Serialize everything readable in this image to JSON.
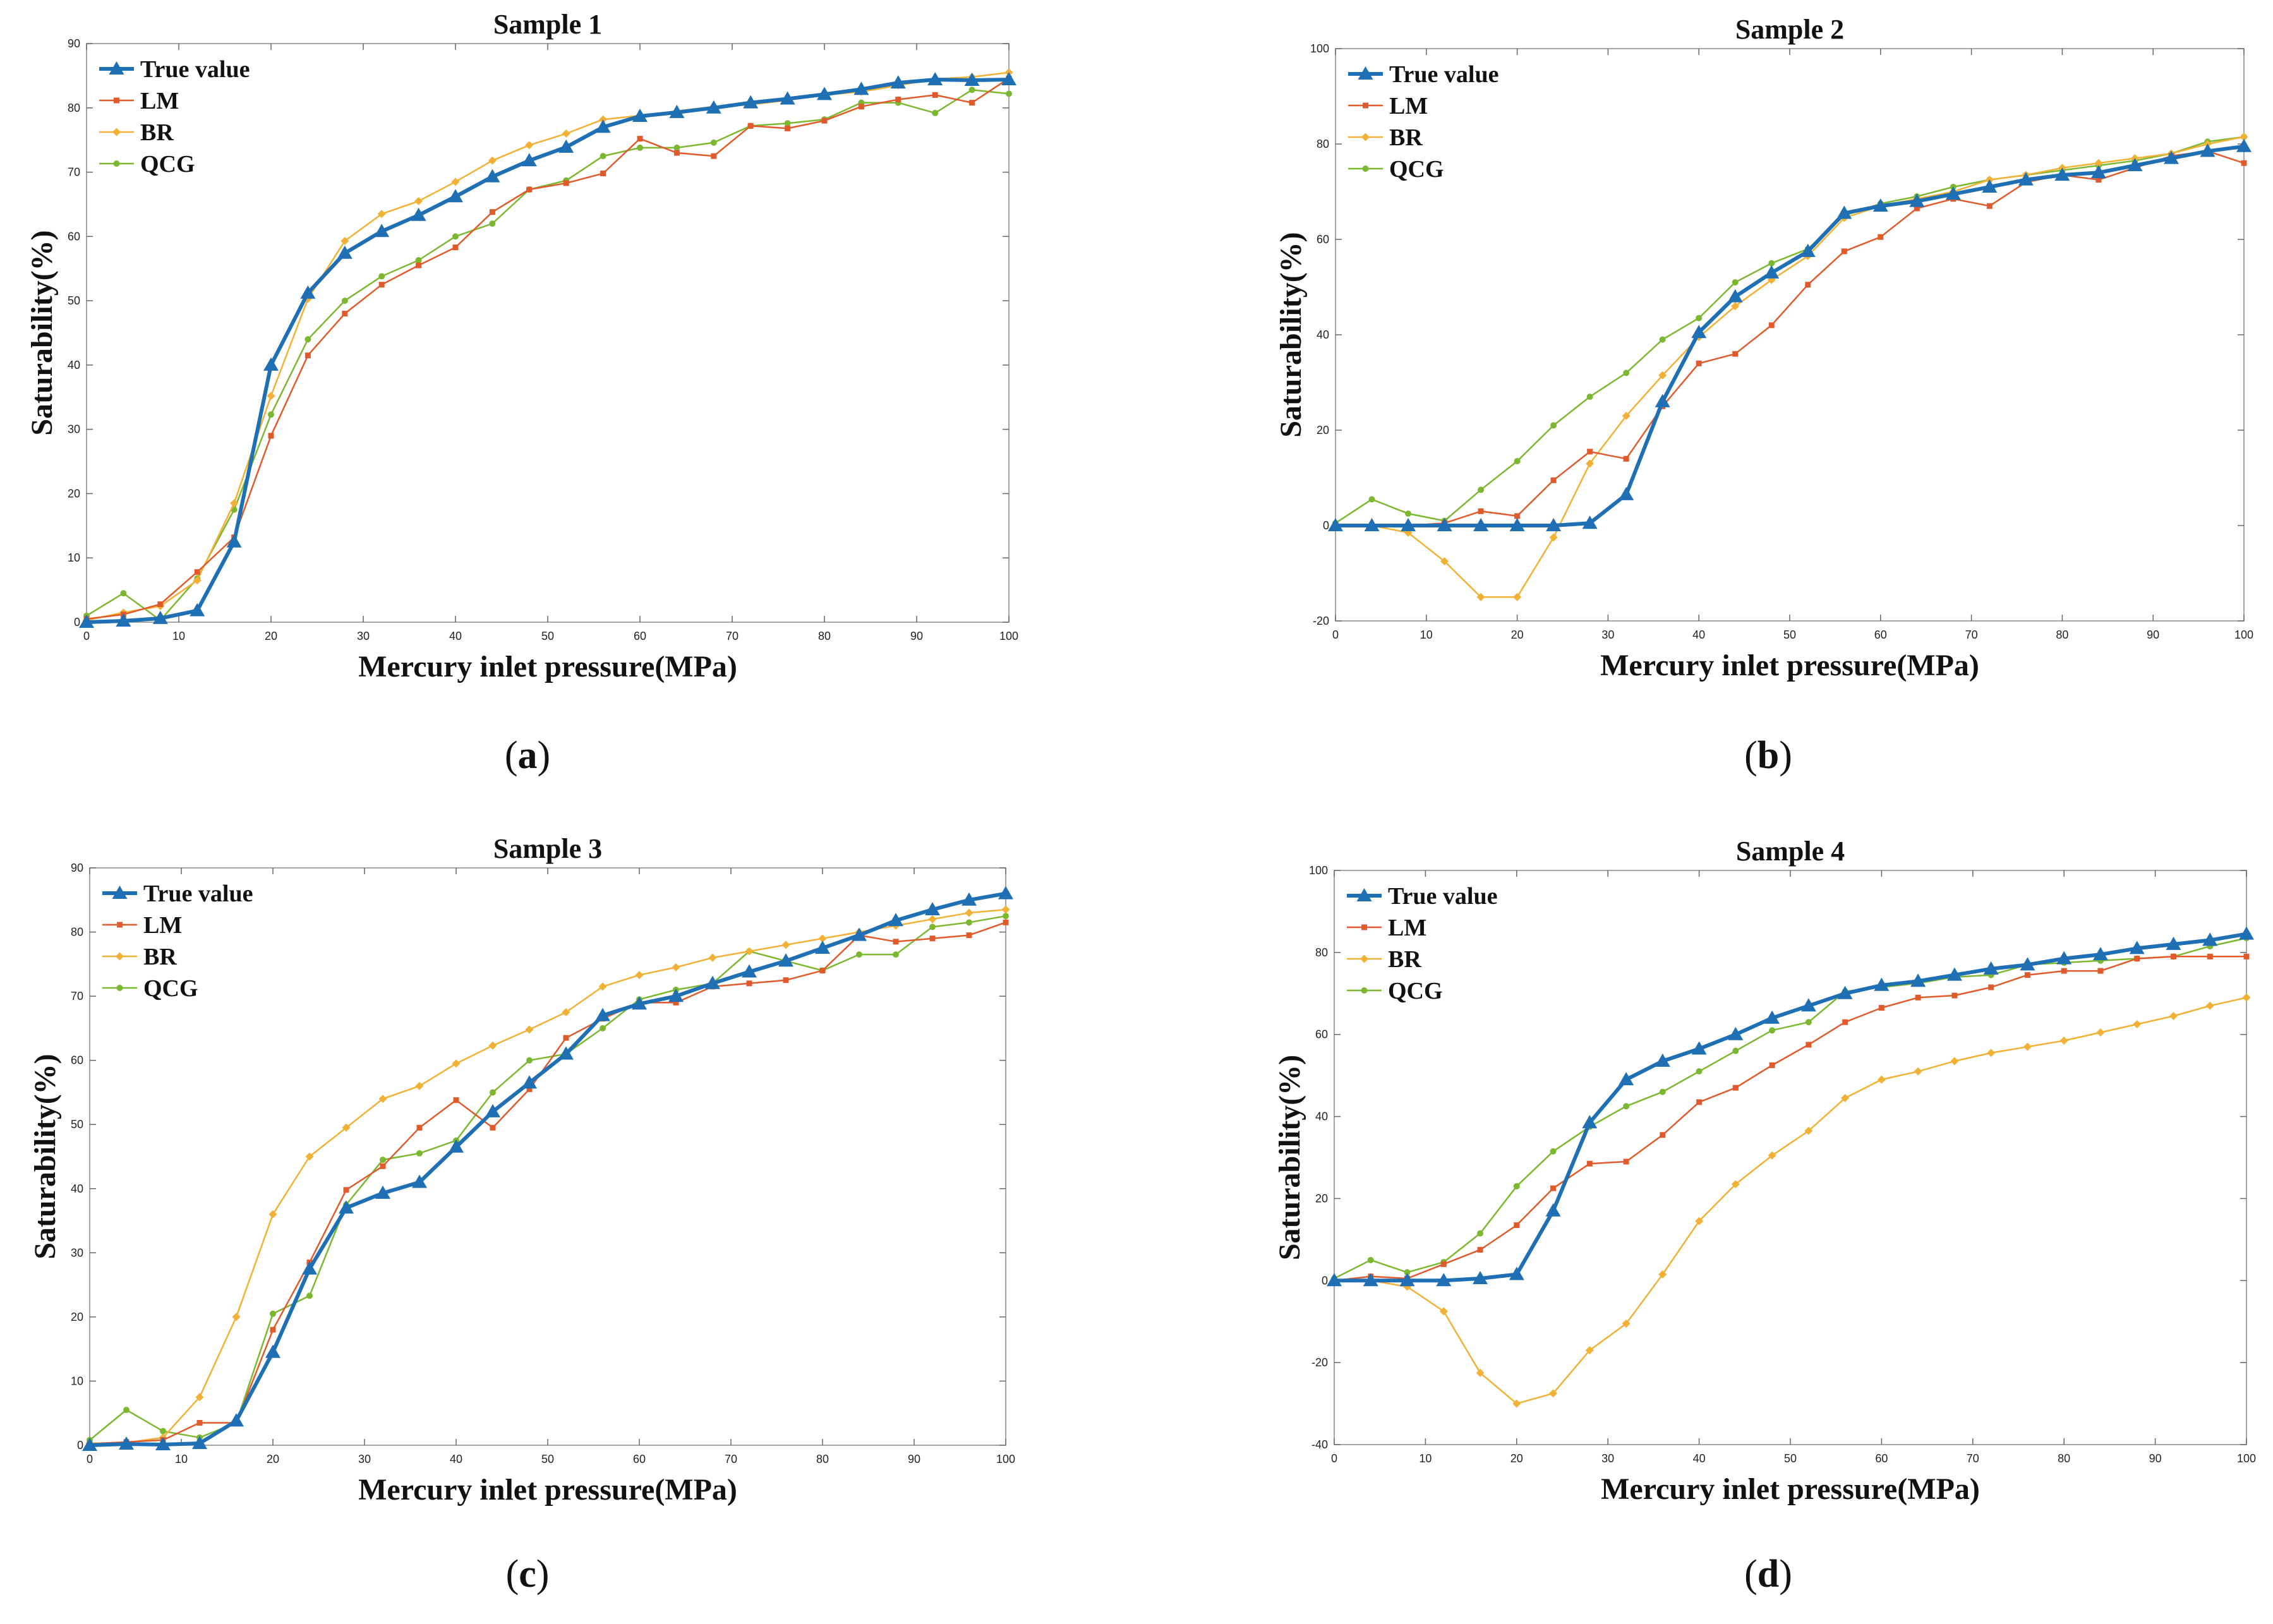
{
  "chart_data": [
    {
      "type": "line",
      "title": "Sample 1",
      "caption_letter": "a",
      "xlabel": "Mercury inlet pressure(MPa)",
      "ylabel": "Saturability(%)",
      "xlim": [
        0,
        100
      ],
      "ylim": [
        0,
        90
      ],
      "xticks": [
        0,
        10,
        20,
        30,
        40,
        50,
        60,
        70,
        80,
        90,
        100
      ],
      "yticks": [
        0,
        10,
        20,
        30,
        40,
        50,
        60,
        70,
        80,
        90
      ],
      "legend_position": "top-left",
      "x": [
        0,
        4,
        8,
        12,
        16,
        20,
        24,
        28,
        32,
        36,
        40,
        44,
        48,
        52,
        56,
        60,
        64,
        68,
        72,
        76,
        80,
        84,
        88,
        92,
        96,
        100
      ],
      "series": [
        {
          "name": "True value",
          "color": "#1f6fb4",
          "marker": "triangle",
          "values": [
            0,
            0.2,
            0.6,
            1.8,
            12.5,
            40,
            51.2,
            57.4,
            60.8,
            63.3,
            66.2,
            69.3,
            71.8,
            73.9,
            77.0,
            78.7,
            79.3,
            80.0,
            80.8,
            81.4,
            82.1,
            82.9,
            83.9,
            84.4,
            84.3,
            84.4
          ]
        },
        {
          "name": "LM",
          "color": "#e05a2b",
          "marker": "square",
          "values": [
            0.5,
            1.2,
            2.8,
            7.8,
            13.2,
            29,
            41.5,
            48.0,
            52.5,
            55.5,
            58.3,
            63.8,
            67.3,
            68.3,
            69.8,
            75.2,
            73.0,
            72.5,
            77.2,
            76.8,
            78.0,
            80.2,
            81.3,
            82.0,
            80.8,
            84.6
          ]
        },
        {
          "name": "BR",
          "color": "#f2b134",
          "marker": "diamond",
          "values": [
            0.3,
            1.5,
            2.5,
            6.5,
            18.5,
            35.2,
            50.3,
            59.3,
            63.5,
            65.5,
            68.5,
            71.8,
            74.2,
            76.0,
            78.2,
            78.8,
            79.5,
            80.2,
            80.5,
            81.2,
            82.0,
            82.5,
            83.5,
            84.5,
            84.8,
            85.5
          ]
        },
        {
          "name": "QCG",
          "color": "#7cb82f",
          "marker": "circle",
          "values": [
            1.0,
            4.5,
            0.3,
            6.8,
            17.5,
            32.3,
            44.0,
            50.0,
            53.8,
            56.3,
            60.0,
            62.0,
            67.3,
            68.7,
            72.5,
            73.8,
            73.8,
            74.6,
            77.2,
            77.6,
            78.2,
            80.8,
            80.8,
            79.2,
            82.8,
            82.2
          ]
        }
      ]
    },
    {
      "type": "line",
      "title": "Sample 2",
      "caption_letter": "b",
      "xlabel": "Mercury inlet pressure(MPa)",
      "ylabel": "Saturability(%)",
      "xlim": [
        0,
        100
      ],
      "ylim": [
        -20,
        100
      ],
      "xticks": [
        0,
        10,
        20,
        30,
        40,
        50,
        60,
        70,
        80,
        90,
        100
      ],
      "yticks": [
        -20,
        0,
        20,
        40,
        60,
        80,
        100
      ],
      "legend_position": "top-left",
      "x": [
        0,
        4,
        8,
        12,
        16,
        20,
        24,
        28,
        32,
        36,
        40,
        44,
        48,
        52,
        56,
        60,
        64,
        68,
        72,
        76,
        80,
        84,
        88,
        92,
        96,
        100
      ],
      "series": [
        {
          "name": "True value",
          "color": "#1f6fb4",
          "marker": "triangle",
          "values": [
            0,
            0,
            0,
            0,
            0,
            0,
            0,
            0.5,
            6.5,
            26,
            40.5,
            48,
            53,
            57.5,
            65.5,
            67,
            68,
            69.5,
            71,
            72.5,
            73.5,
            74,
            75.5,
            77,
            78.5,
            79.5
          ]
        },
        {
          "name": "LM",
          "color": "#e05a2b",
          "marker": "square",
          "values": [
            0,
            0,
            0,
            0.5,
            3,
            2,
            9.5,
            15.5,
            14,
            25,
            34,
            36,
            42,
            50.5,
            57.5,
            60.5,
            66.5,
            68.5,
            67,
            72,
            73.5,
            72.5,
            75,
            77.5,
            78.5,
            76
          ]
        },
        {
          "name": "BR",
          "color": "#f2b134",
          "marker": "diamond",
          "values": [
            0,
            0,
            -1.5,
            -7.5,
            -15,
            -15,
            -2.5,
            13,
            23,
            31.5,
            39.5,
            46,
            51.5,
            56.5,
            64.5,
            67,
            68.5,
            70,
            72.5,
            73.5,
            75,
            76,
            77,
            78,
            80,
            81.5
          ]
        },
        {
          "name": "QCG",
          "color": "#7cb82f",
          "marker": "circle",
          "values": [
            0.5,
            5.5,
            2.5,
            1,
            7.5,
            13.5,
            21,
            27,
            32,
            39,
            43.5,
            51,
            55,
            58,
            65,
            67.5,
            69,
            71,
            72.5,
            73.5,
            74.5,
            75.5,
            76.5,
            78,
            80.5,
            81.5
          ]
        }
      ]
    },
    {
      "type": "line",
      "title": "Sample 3",
      "caption_letter": "c",
      "xlabel": "Mercury inlet pressure(MPa)",
      "ylabel": "Saturability(%)",
      "xlim": [
        0,
        100
      ],
      "ylim": [
        0,
        90
      ],
      "xticks": [
        0,
        10,
        20,
        30,
        40,
        50,
        60,
        70,
        80,
        90,
        100
      ],
      "yticks": [
        0,
        10,
        20,
        30,
        40,
        50,
        60,
        70,
        80,
        90
      ],
      "legend_position": "top-left",
      "x": [
        0,
        4,
        8,
        12,
        16,
        20,
        24,
        28,
        32,
        36,
        40,
        44,
        48,
        52,
        56,
        60,
        64,
        68,
        72,
        76,
        80,
        84,
        88,
        92,
        96,
        100
      ],
      "series": [
        {
          "name": "True value",
          "color": "#1f6fb4",
          "marker": "triangle",
          "values": [
            0,
            0.2,
            0.1,
            0.3,
            3.8,
            14.5,
            27.5,
            37,
            39.3,
            41,
            46.5,
            52,
            56.5,
            61,
            67,
            68.8,
            70,
            72,
            73.8,
            75.5,
            77.5,
            79.5,
            81.8,
            83.5,
            85,
            86
          ]
        },
        {
          "name": "LM",
          "color": "#e05a2b",
          "marker": "square",
          "values": [
            0.2,
            0.5,
            0.8,
            3.5,
            3.5,
            18,
            28.5,
            39.8,
            43.5,
            49.5,
            53.8,
            49.5,
            55.5,
            63.5,
            66.5,
            69,
            69,
            71.5,
            72,
            72.5,
            74,
            79.5,
            78.5,
            79,
            79.5,
            81.5
          ]
        },
        {
          "name": "BR",
          "color": "#f2b134",
          "marker": "diamond",
          "values": [
            0.3,
            0.4,
            1.2,
            7.5,
            20,
            36,
            45,
            49.5,
            54,
            56,
            59.5,
            62.3,
            64.8,
            67.5,
            71.5,
            73.3,
            74.5,
            76,
            77,
            78,
            79,
            80,
            81,
            82,
            83,
            83.5
          ]
        },
        {
          "name": "QCG",
          "color": "#7cb82f",
          "marker": "circle",
          "values": [
            0.8,
            5.5,
            2.2,
            1.2,
            3.5,
            20.5,
            23.3,
            37.5,
            44.5,
            45.5,
            47.5,
            55,
            60,
            61,
            65,
            69.5,
            71,
            72,
            77,
            75.5,
            74,
            76.5,
            76.5,
            80.8,
            81.5,
            82.5
          ]
        }
      ]
    },
    {
      "type": "line",
      "title": "Sample 4",
      "caption_letter": "d",
      "xlabel": "Mercury inlet pressure(MPa)",
      "ylabel": "Saturability(%)",
      "xlim": [
        0,
        100
      ],
      "ylim": [
        -40,
        100
      ],
      "xticks": [
        0,
        10,
        20,
        30,
        40,
        50,
        60,
        70,
        80,
        90,
        100
      ],
      "yticks": [
        -40,
        -20,
        0,
        20,
        40,
        60,
        80,
        100
      ],
      "legend_position": "top-left",
      "x": [
        0,
        4,
        8,
        12,
        16,
        20,
        24,
        28,
        32,
        36,
        40,
        44,
        48,
        52,
        56,
        60,
        64,
        68,
        72,
        76,
        80,
        84,
        88,
        92,
        96,
        100
      ],
      "series": [
        {
          "name": "True value",
          "color": "#1f6fb4",
          "marker": "triangle",
          "values": [
            0,
            0,
            0,
            0,
            0.5,
            1.5,
            17,
            38.5,
            49,
            53.5,
            56.5,
            60,
            64,
            67,
            70,
            72,
            73,
            74.5,
            76,
            77,
            78.5,
            79.5,
            81,
            82,
            83,
            84.5
          ]
        },
        {
          "name": "LM",
          "color": "#e05a2b",
          "marker": "square",
          "values": [
            0,
            1,
            0.5,
            4,
            7.5,
            13.5,
            22.5,
            28.5,
            29,
            35.5,
            43.5,
            47,
            52.5,
            57.5,
            63,
            66.5,
            69,
            69.5,
            71.5,
            74.5,
            75.5,
            75.5,
            78.5,
            79,
            79,
            79
          ]
        },
        {
          "name": "BR",
          "color": "#f2b134",
          "marker": "diamond",
          "values": [
            0,
            0,
            -1.5,
            -7.5,
            -22.5,
            -30,
            -27.5,
            -17,
            -10.5,
            1.5,
            14.5,
            23.5,
            30.5,
            36.5,
            44.5,
            49,
            51,
            53.5,
            55.5,
            57,
            58.5,
            60.5,
            62.5,
            64.5,
            67,
            69
          ]
        },
        {
          "name": "QCG",
          "color": "#7cb82f",
          "marker": "circle",
          "values": [
            0.5,
            5,
            2,
            4.5,
            11.5,
            23,
            31.5,
            37.5,
            42.5,
            46,
            51,
            56,
            61,
            63,
            70.5,
            71.5,
            72.5,
            74,
            74.5,
            77,
            77.5,
            78,
            78.5,
            79,
            81.5,
            83.5
          ]
        }
      ]
    }
  ]
}
